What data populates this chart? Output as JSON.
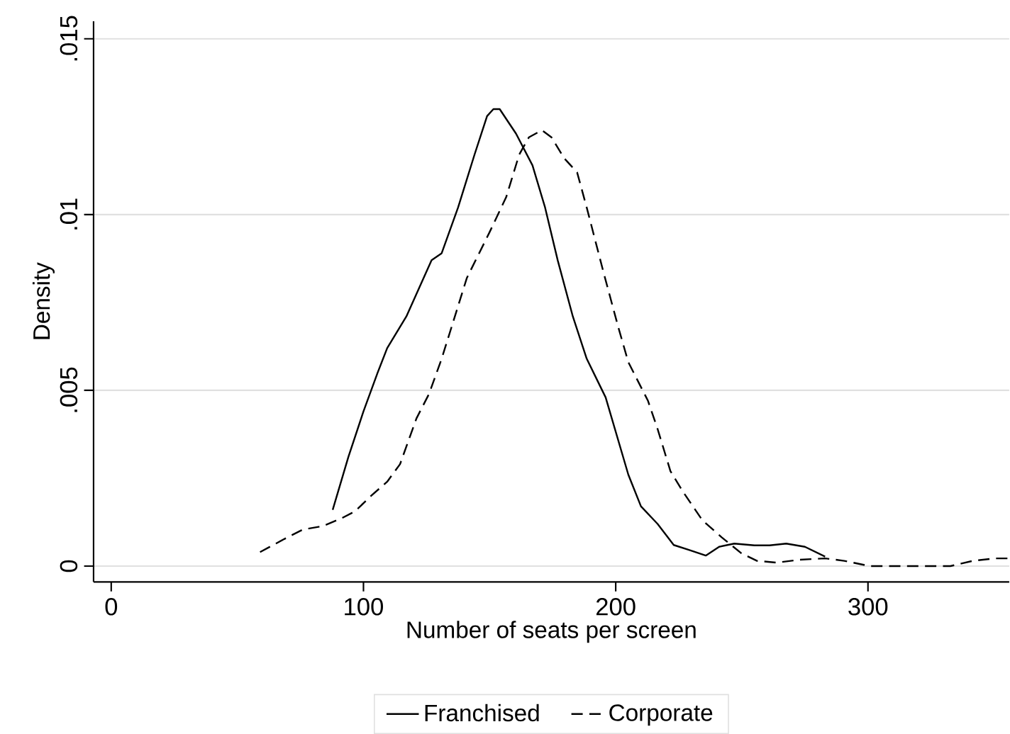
{
  "chart_data": {
    "type": "line",
    "xlabel": "Number of seats per screen",
    "ylabel": "Density",
    "xlim": [
      -7,
      356
    ],
    "ylim": [
      -0.00045,
      0.0155
    ],
    "xticks": [
      0,
      100,
      200,
      300
    ],
    "yticks": [
      0,
      {
        "value": 0.005,
        "label": ".005"
      },
      {
        "value": 0.01,
        "label": ".01"
      },
      {
        "value": 0.015,
        "label": ".015"
      }
    ],
    "grid": "y",
    "legend": "bottom",
    "marker": "none",
    "series": [
      {
        "name": "Franchised",
        "color": "#000000",
        "line_style": "solid",
        "x": [
          87.8,
          94,
          100,
          105.6,
          109.4,
          117,
          122,
          127,
          131,
          137.5,
          144,
          149,
          151.5,
          154,
          160.5,
          167,
          172,
          177,
          183,
          188.5,
          196,
          205,
          210,
          216.6,
          223,
          229,
          235.7,
          241,
          247,
          255,
          261,
          267.6,
          275,
          283
        ],
        "values": [
          0.0016,
          0.0031,
          0.0044,
          0.0055,
          0.0062,
          0.0071,
          0.0079,
          0.0087,
          0.0089,
          0.0102,
          0.0117,
          0.0128,
          0.013,
          0.013,
          0.0123,
          0.0114,
          0.0102,
          0.0087,
          0.0071,
          0.0059,
          0.0048,
          0.0026,
          0.0017,
          0.0012,
          0.0006,
          0.00046,
          0.0003,
          0.00055,
          0.00064,
          0.00059,
          0.00059,
          0.00064,
          0.00055,
          0.00027
        ]
      },
      {
        "name": "Corporate",
        "color": "#000000",
        "line_style": "dashed",
        "x": [
          59,
          68.6,
          76,
          84,
          91.6,
          96.7,
          103,
          109.4,
          114.5,
          121,
          126,
          131,
          141,
          150,
          156.6,
          161.7,
          165.6,
          170.7,
          174.5,
          179.6,
          184.7,
          188.5,
          195,
          201,
          205,
          212.8,
          216.6,
          221.7,
          226.8,
          234.4,
          242,
          249.7,
          256,
          263.8,
          272.7,
          283,
          290.6,
          300.8,
          313.5,
          332.7,
          341.6,
          350.5,
          356
        ],
        "values": [
          0.0004,
          0.00077,
          0.00104,
          0.00114,
          0.00137,
          0.00156,
          0.002,
          0.0024,
          0.0029,
          0.0042,
          0.0049,
          0.0059,
          0.0082,
          0.0095,
          0.0105,
          0.0117,
          0.0122,
          0.0124,
          0.0122,
          0.0116,
          0.0112,
          0.0102,
          0.0084,
          0.0068,
          0.0058,
          0.0047,
          0.0039,
          0.0027,
          0.0021,
          0.0013,
          0.00082,
          0.00037,
          0.00015,
          0.0001,
          0.00018,
          0.00022,
          0.00015,
          0,
          0,
          0,
          0.00015,
          0.00022,
          0.00022
        ]
      }
    ]
  }
}
